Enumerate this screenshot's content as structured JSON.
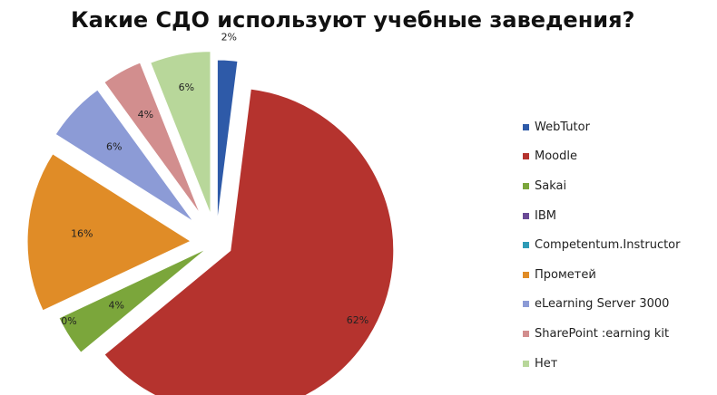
{
  "title": "Какие СДО используют учебные заведения?",
  "chart_data": {
    "type": "pie",
    "title": "Какие СДО используют учебные заведения?",
    "legend_position": "right",
    "style": "exploded",
    "slices": [
      {
        "name": "WebTutor",
        "value": 2,
        "label": "2%",
        "color": "#2e5aa8"
      },
      {
        "name": "Moodle",
        "value": 62,
        "label": "62%",
        "color": "#b5332e"
      },
      {
        "name": "Sakai",
        "value": 4,
        "label": "4%",
        "color": "#7ba63b"
      },
      {
        "name": "IBM",
        "value": 0,
        "label": "",
        "color": "#6a4a96"
      },
      {
        "name": "Competentum.Instructor",
        "value": 0,
        "label": "",
        "color": "#2f9bb6"
      },
      {
        "name": "Прометей",
        "value": 0,
        "label": "0%",
        "color": "#e08c27"
      },
      {
        "name": "",
        "value": 16,
        "label": "16%",
        "color": "#e08c27"
      },
      {
        "name": "eLearning Server 3000",
        "value": 6,
        "label": "6%",
        "color": "#8c9bd6"
      },
      {
        "name": "SharePoint :earning kit",
        "value": 4,
        "label": "4%",
        "color": "#d28e8e"
      },
      {
        "name": "Нет",
        "value": 6,
        "label": "6%",
        "color": "#b8d79a"
      }
    ],
    "legend": [
      {
        "label": "WebTutor",
        "color": "#2e5aa8"
      },
      {
        "label": "Moodle",
        "color": "#b5332e"
      },
      {
        "label": "Sakai",
        "color": "#7ba63b"
      },
      {
        "label": "IBM",
        "color": "#6a4a96"
      },
      {
        "label": "Competentum.Instructor",
        "color": "#2f9bb6"
      },
      {
        "label": "Прометей",
        "color": "#e08c27"
      },
      {
        "label": "eLearning Server 3000",
        "color": "#8c9bd6"
      },
      {
        "label": "SharePoint :earning kit",
        "color": "#d28e8e"
      },
      {
        "label": "Нет",
        "color": "#b8d79a"
      }
    ]
  }
}
